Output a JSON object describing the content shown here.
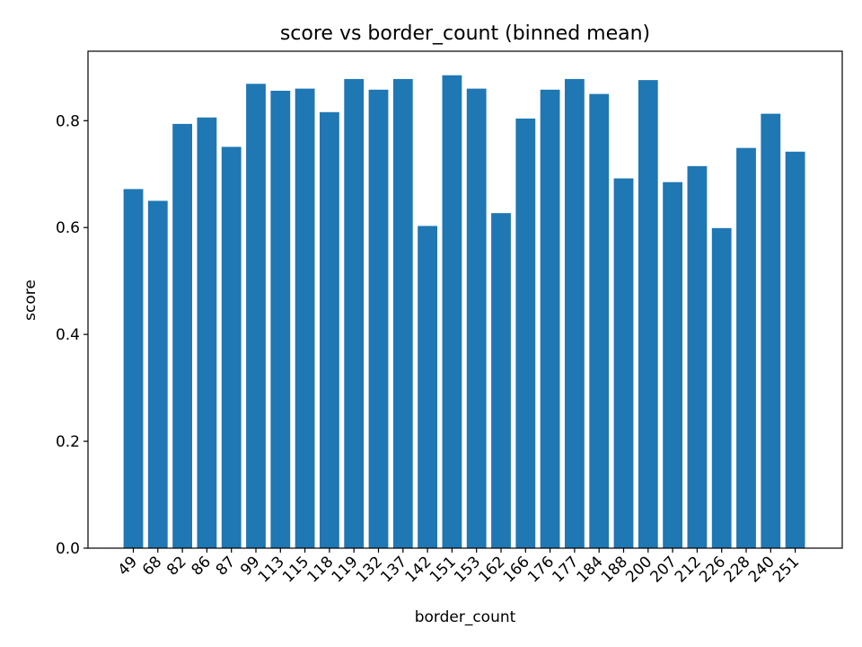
{
  "chart_data": {
    "type": "bar",
    "title": "score vs border_count (binned mean)",
    "xlabel": "border_count",
    "ylabel": "score",
    "categories": [
      "49",
      "68",
      "82",
      "86",
      "87",
      "99",
      "113",
      "115",
      "118",
      "119",
      "132",
      "137",
      "142",
      "151",
      "153",
      "162",
      "166",
      "176",
      "177",
      "184",
      "188",
      "200",
      "207",
      "212",
      "226",
      "228",
      "240",
      "251"
    ],
    "values": [
      0.672,
      0.65,
      0.794,
      0.806,
      0.751,
      0.869,
      0.856,
      0.86,
      0.816,
      0.878,
      0.858,
      0.878,
      0.603,
      0.885,
      0.86,
      0.627,
      0.804,
      0.858,
      0.878,
      0.85,
      0.692,
      0.876,
      0.685,
      0.715,
      0.599,
      0.749,
      0.813,
      0.742
    ],
    "ylim": [
      0,
      0.93
    ],
    "yticks": [
      "0.0",
      "0.2",
      "0.4",
      "0.6",
      "0.8"
    ],
    "ytick_values": [
      0,
      0.2,
      0.4,
      0.6,
      0.8
    ],
    "bar_color": "#1f77b4",
    "grid": false,
    "legend": "none"
  }
}
